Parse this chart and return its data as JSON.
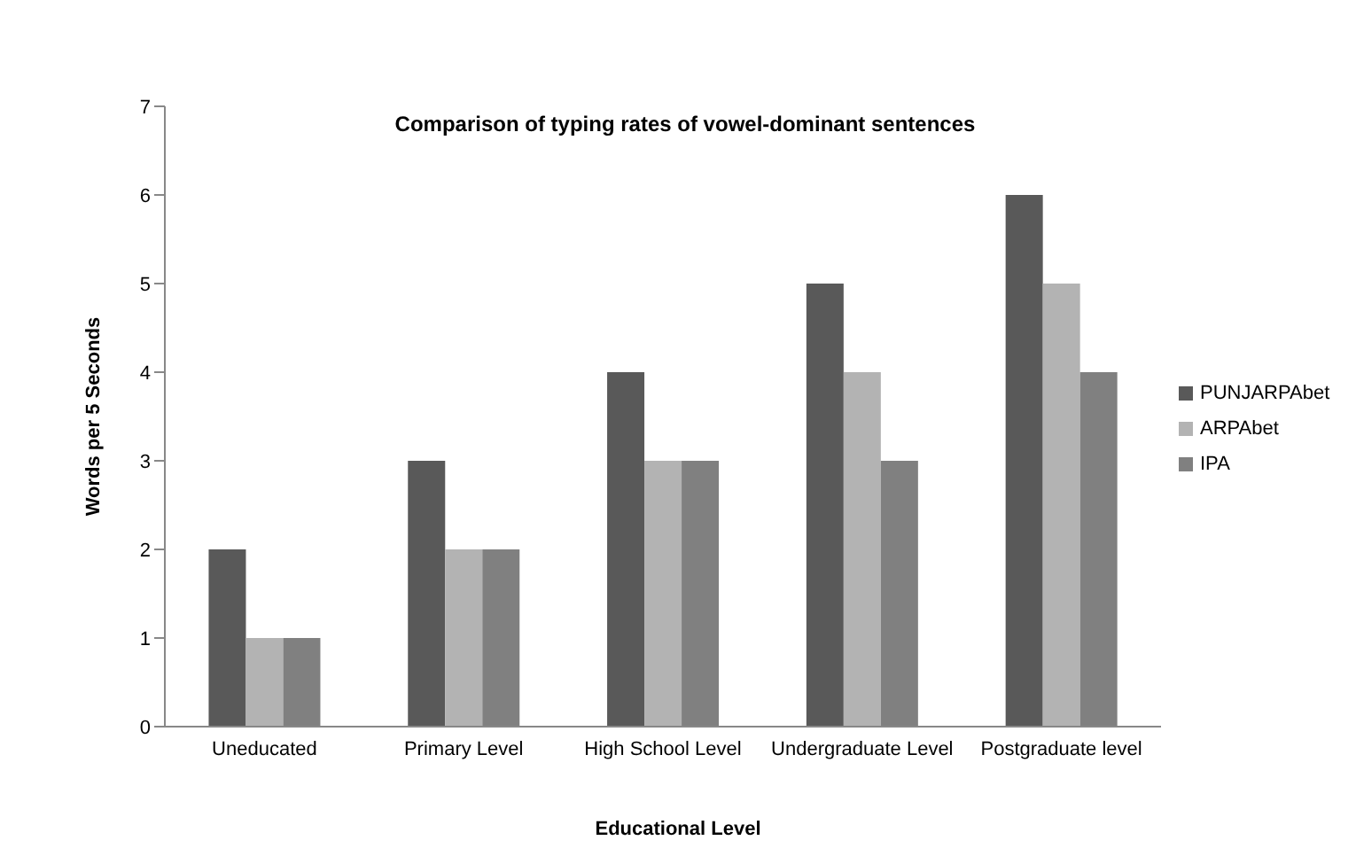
{
  "chart_data": {
    "type": "bar",
    "title": "Comparison of typing rates of vowel-dominant sentences",
    "xlabel": "Educational  Level",
    "ylabel": "Words per 5 Seconds",
    "categories": [
      "Uneducated",
      "Primary Level",
      "High School Level",
      "Undergraduate Level",
      "Postgraduate level"
    ],
    "series": [
      {
        "name": "PUNJARPAbet",
        "color": "#595959",
        "values": [
          2,
          3,
          4,
          5,
          6
        ]
      },
      {
        "name": "ARPAbet",
        "color": "#b3b3b3",
        "values": [
          1,
          2,
          3,
          4,
          5
        ]
      },
      {
        "name": "IPA",
        "color": "#808080",
        "values": [
          1,
          2,
          3,
          3,
          4
        ]
      }
    ],
    "ylim": [
      0,
      7
    ],
    "yticks": [
      0,
      1,
      2,
      3,
      4,
      5,
      6,
      7
    ],
    "grid": false,
    "legend": "right"
  }
}
